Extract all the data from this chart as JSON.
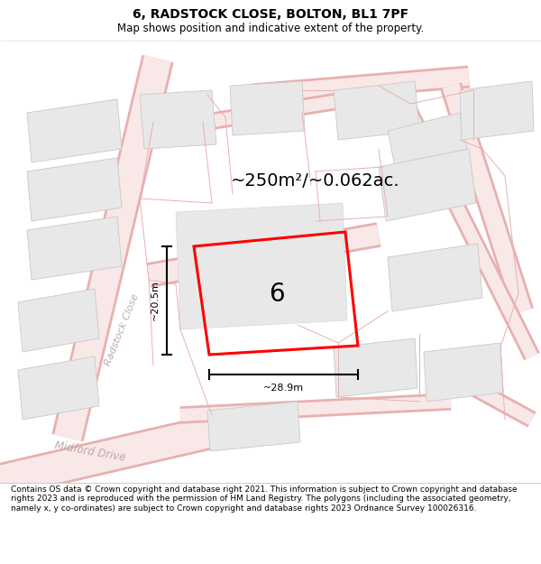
{
  "title": "6, RADSTOCK CLOSE, BOLTON, BL1 7PF",
  "subtitle": "Map shows position and indicative extent of the property.",
  "area_text": "~250m²/~0.062ac.",
  "width_text": "~28.9m",
  "height_text": "~20.5m",
  "house_number": "6",
  "street_label": "Radstock Close",
  "street_label2": "Midford Drive",
  "footer_text": "Contains OS data © Crown copyright and database right 2021. This information is subject to Crown copyright and database rights 2023 and is reproduced with the permission of HM Land Registry. The polygons (including the associated geometry, namely x, y co-ordinates) are subject to Crown copyright and database rights 2023 Ordnance Survey 100026316.",
  "bg_color": "#ffffff",
  "road_color": "#f9e8e8",
  "road_edge_color": "#e8b0b0",
  "building_color": "#e8e8e8",
  "building_edge": "#c8c8c8",
  "highlight_color": "#ff0000",
  "text_color": "#000000",
  "street_text_color": "#bbaaaa",
  "highlight_lw": 2.2,
  "prop_lw": 0.7,
  "building_lw": 0.6,
  "road_lw": 0.7,
  "title_fontsize": 10,
  "subtitle_fontsize": 8.5,
  "area_fontsize": 14,
  "number_fontsize": 20,
  "dim_fontsize": 8,
  "street_fontsize": 8,
  "footer_fontsize": 6.5
}
